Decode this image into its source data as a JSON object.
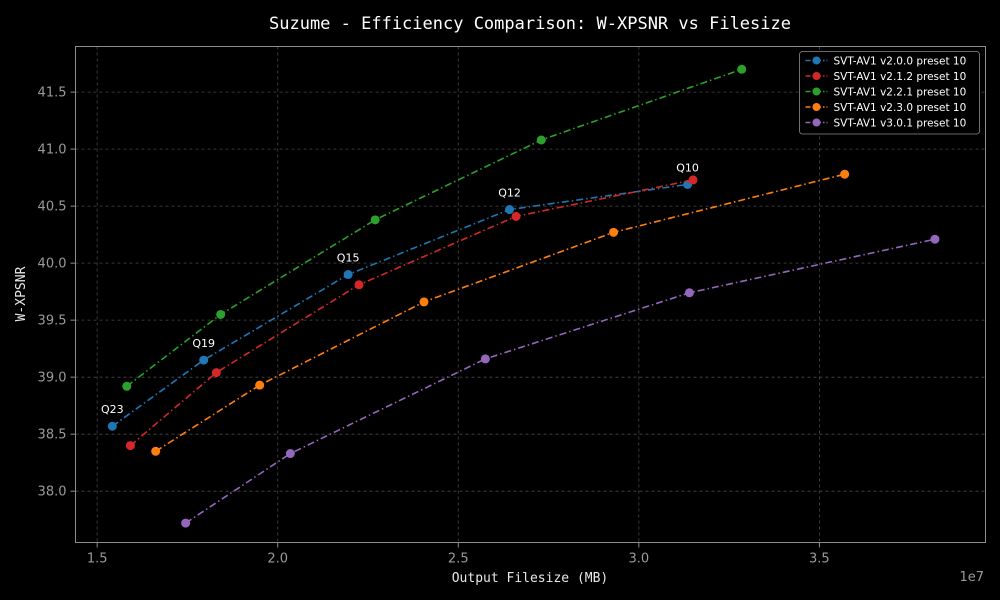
{
  "chart_data": {
    "type": "line",
    "title": "Suzume - Efficiency Comparison: W-XPSNR vs Filesize",
    "xlabel": "Output Filesize (MB)",
    "ylabel": "W-XPSNR",
    "x_offset_label": "1e7",
    "xlim": [
      14400000,
      39600000
    ],
    "ylim": [
      37.55,
      41.9
    ],
    "x_ticks": [
      15000000,
      20000000,
      25000000,
      30000000,
      35000000
    ],
    "x_tick_labels": [
      "1.5",
      "2.0",
      "2.5",
      "3.0",
      "3.5"
    ],
    "y_ticks": [
      38.0,
      38.5,
      39.0,
      39.5,
      40.0,
      40.5,
      41.0,
      41.5
    ],
    "y_tick_labels": [
      "38.0",
      "38.5",
      "39.0",
      "39.5",
      "40.0",
      "40.5",
      "41.0",
      "41.5"
    ],
    "grid": true,
    "legend_position": "top-right",
    "series": [
      {
        "name": "SVT-AV1 v2.0.0 preset 10",
        "color": "#1f77b4",
        "x": [
          15420000,
          17950000,
          21950000,
          26420000,
          31350000
        ],
        "y": [
          38.57,
          39.15,
          39.9,
          40.47,
          40.69
        ]
      },
      {
        "name": "SVT-AV1 v2.1.2 preset 10",
        "color": "#d62728",
        "x": [
          15920000,
          18300000,
          22250000,
          26600000,
          31500000
        ],
        "y": [
          38.4,
          39.04,
          39.81,
          40.41,
          40.73
        ]
      },
      {
        "name": "SVT-AV1 v2.2.1 preset 10",
        "color": "#2ca02c",
        "x": [
          15820000,
          18420000,
          22700000,
          27300000,
          32850000
        ],
        "y": [
          38.92,
          39.55,
          40.38,
          41.08,
          41.7
        ]
      },
      {
        "name": "SVT-AV1 v2.3.0 preset 10",
        "color": "#ff7f0e",
        "x": [
          16620000,
          19500000,
          24050000,
          29300000,
          35700000
        ],
        "y": [
          38.35,
          38.93,
          39.66,
          40.27,
          40.78
        ]
      },
      {
        "name": "SVT-AV1 v3.0.1 preset 10",
        "color": "#9467bd",
        "x": [
          17450000,
          20350000,
          25750000,
          31400000,
          38200000
        ],
        "y": [
          37.72,
          38.33,
          39.16,
          39.74,
          40.21
        ]
      }
    ],
    "annotations": [
      {
        "text": "Q23",
        "x": 15420000,
        "y": 38.57
      },
      {
        "text": "Q19",
        "x": 17950000,
        "y": 39.15
      },
      {
        "text": "Q15",
        "x": 21950000,
        "y": 39.9
      },
      {
        "text": "Q12",
        "x": 26420000,
        "y": 40.47
      },
      {
        "text": "Q10",
        "x": 31350000,
        "y": 40.69
      }
    ]
  }
}
